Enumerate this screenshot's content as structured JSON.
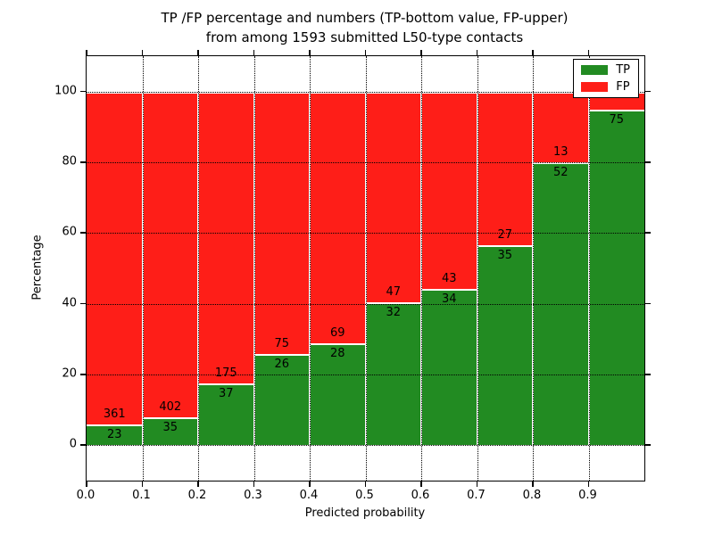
{
  "figure": {
    "title_line1": "TP /FP percentage and numbers (TP-bottom value, FP-upper)",
    "title_line2": "from among 1593 submitted L50-type contacts"
  },
  "chart_data": {
    "type": "bar",
    "stacked": true,
    "title": "TP /FP percentage and numbers (TP-bottom value, FP-upper)\nfrom among 1593 submitted L50-type contacts",
    "xlabel": "Predicted probability",
    "ylabel": "Percentage",
    "xlim": [
      0.0,
      1.0
    ],
    "ylim": [
      -10,
      110
    ],
    "grid": "dotted",
    "x_tick_labels": [
      "0.0",
      "0.1",
      "0.2",
      "0.3",
      "0.4",
      "0.5",
      "0.6",
      "0.7",
      "0.8",
      "0.9"
    ],
    "y_ticks": [
      0,
      20,
      40,
      60,
      80,
      100
    ],
    "colors": {
      "tp": "#228b22",
      "fp": "#fe1e18",
      "bar_edge": "#ffffff"
    },
    "legend": {
      "position": "upper right",
      "entries": [
        {
          "label": "TP",
          "color": "#228b22"
        },
        {
          "label": "FP",
          "color": "#fe1e18"
        }
      ]
    },
    "bars": [
      {
        "x_range": [
          0.0,
          0.1
        ],
        "tp_count": 23,
        "fp_count": 361,
        "tp_pct": 5.99
      },
      {
        "x_range": [
          0.1,
          0.2
        ],
        "tp_count": 35,
        "fp_count": 402,
        "tp_pct": 8.01
      },
      {
        "x_range": [
          0.2,
          0.3
        ],
        "tp_count": 37,
        "fp_count": 175,
        "tp_pct": 17.45
      },
      {
        "x_range": [
          0.3,
          0.4
        ],
        "tp_count": 26,
        "fp_count": 75,
        "tp_pct": 25.74
      },
      {
        "x_range": [
          0.4,
          0.5
        ],
        "tp_count": 28,
        "fp_count": 69,
        "tp_pct": 28.87
      },
      {
        "x_range": [
          0.5,
          0.6
        ],
        "tp_count": 32,
        "fp_count": 47,
        "tp_pct": 40.51
      },
      {
        "x_range": [
          0.6,
          0.7
        ],
        "tp_count": 34,
        "fp_count": 43,
        "tp_pct": 44.16
      },
      {
        "x_range": [
          0.7,
          0.8
        ],
        "tp_count": 35,
        "fp_count": 27,
        "tp_pct": 56.45
      },
      {
        "x_range": [
          0.8,
          0.9
        ],
        "tp_count": 52,
        "fp_count": 13,
        "tp_pct": 80.0
      },
      {
        "x_range": [
          0.9,
          1.0
        ],
        "tp_count": 75,
        "fp_count": null,
        "tp_pct": 94.9
      }
    ]
  }
}
